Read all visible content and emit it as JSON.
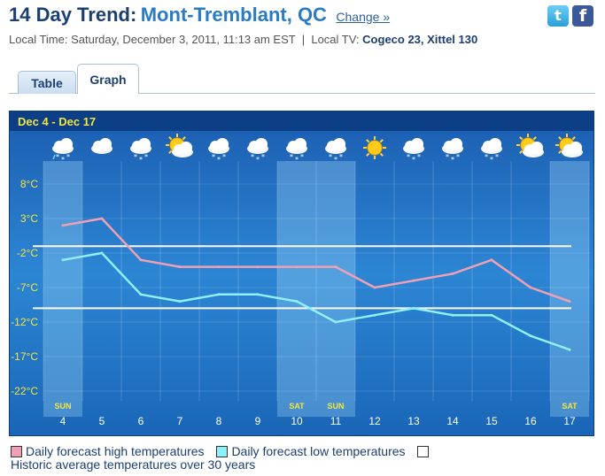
{
  "header": {
    "title_prefix": "14 Day Trend:",
    "city": "Mont-Tremblant, QC",
    "change_label": "Change »",
    "local_time": "Local Time: Saturday, December 3, 2011, 11:13 am EST",
    "separator": "|",
    "local_tv_label": "Local TV:",
    "local_tv_value": "Cogeco 23, Xittel 130",
    "social": {
      "twitter_glyph": "t",
      "facebook_glyph": "f"
    }
  },
  "tabs": [
    {
      "label": "Table",
      "active": false
    },
    {
      "label": "Graph",
      "active": true
    }
  ],
  "legend": {
    "high": "Daily forecast high temperatures",
    "low": "Daily forecast low temperatures",
    "historic": "Historic average temperatures over 30 years"
  },
  "colors": {
    "high": "#f0a0b4",
    "low": "#8ff0f8",
    "historic": "#ffffff",
    "axis_text": "#f2e641",
    "background": "#2c86d4",
    "weekend_band": "#9fd3f7"
  },
  "chart_data": {
    "type": "line",
    "title": "Dec 4 -   Dec 17",
    "x": [
      4,
      5,
      6,
      7,
      8,
      9,
      10,
      11,
      12,
      13,
      14,
      15,
      16,
      17
    ],
    "weekday_labels": [
      "SUN",
      "",
      "",
      "",
      "",
      "",
      "SAT",
      "SUN",
      "",
      "",
      "",
      "",
      "",
      "SAT"
    ],
    "icons": [
      "rain-snow-icon",
      "cloud-icon",
      "snow-icon",
      "sun-cloud-icon",
      "snow-icon",
      "snow-icon",
      "snow-icon",
      "snow-icon",
      "sun-icon",
      "snow-icon",
      "snow-icon",
      "snow-icon",
      "sun-cloud-icon",
      "sun-cloud-icon"
    ],
    "yticks": [
      "8°C",
      "3°C",
      "-2°C",
      "-7°C",
      "-12°C",
      "-17°C",
      "-22°C"
    ],
    "ytick_values": [
      8,
      3,
      -2,
      -7,
      -12,
      -17,
      -22
    ],
    "ylim": [
      -25,
      8
    ],
    "grid": true,
    "series": [
      {
        "key": "high",
        "name": "Daily forecast high temperatures",
        "values": [
          2,
          3,
          -3,
          -4,
          -4,
          -4,
          -4,
          -4,
          -7,
          -6,
          -5,
          -3,
          -7,
          -9
        ]
      },
      {
        "key": "low",
        "name": "Daily forecast low temperatures",
        "values": [
          -3,
          -2,
          -8,
          -9,
          -8,
          -8,
          -9,
          -12,
          -11,
          -10,
          -11,
          -11,
          -14,
          -16
        ]
      }
    ],
    "historic_average": {
      "name": "Historic average temperatures over 30 years",
      "high": -1,
      "low": -10
    }
  }
}
